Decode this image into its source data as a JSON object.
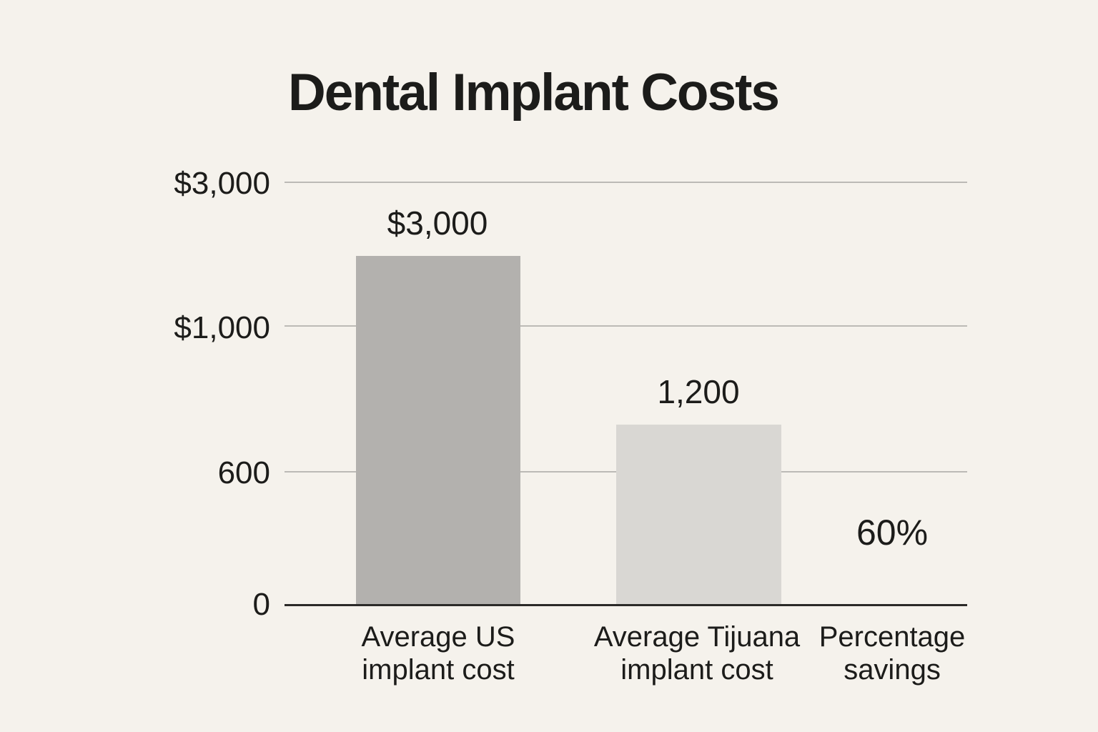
{
  "chart_data": {
    "type": "bar",
    "title": "Dental Implant Costs",
    "categories": [
      "Average US implant cost",
      "Average Tijuana implant cost",
      "Percentage savings"
    ],
    "category_lines": [
      [
        "Average US",
        "implant cost"
      ],
      [
        "Average Tijuana",
        "implant cost"
      ],
      [
        "Percentage",
        "savings"
      ]
    ],
    "values": [
      3000,
      1200,
      null
    ],
    "value_labels": [
      "$3,000",
      "1,200",
      "60%"
    ],
    "savings_percent": 60,
    "ytick_labels": [
      "$3,000",
      "$1,000",
      "600",
      "0"
    ],
    "yticks_values": [
      3000,
      1000,
      600,
      0
    ],
    "ylim": [
      0,
      3000
    ],
    "xlabel": "",
    "ylabel": "",
    "grid": true,
    "legend": false,
    "layout_hints": "y ticks equally spaced (non-linear scale); third category shown as text annotation instead of a bar"
  },
  "colors": {
    "background": "#f5f2ec",
    "bar_primary": "#b3b1ae",
    "bar_secondary": "#d9d7d3",
    "gridline": "#bcbab6",
    "axis_line": "#2b2a28",
    "text": "#1c1c1a"
  }
}
